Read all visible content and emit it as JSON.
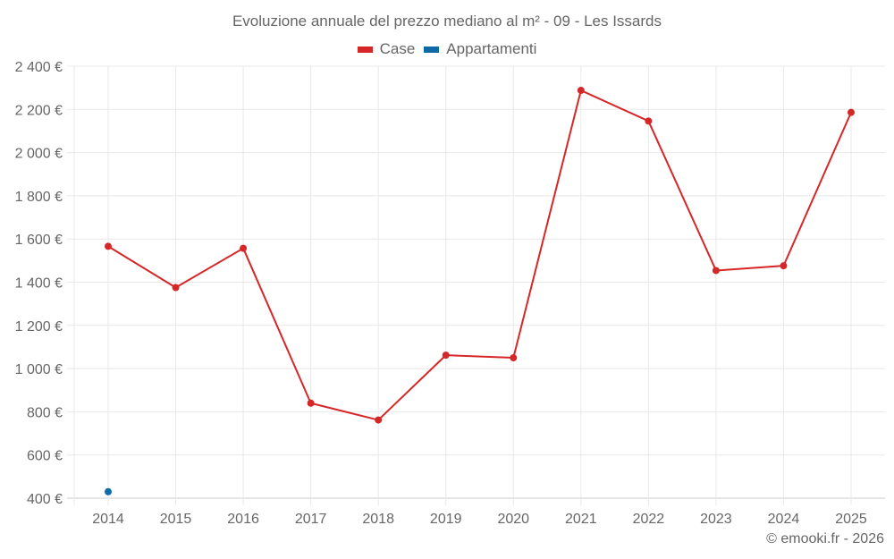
{
  "title": "Evoluzione annuale del prezzo mediano al m² - 09 - Les Issards",
  "legend": [
    {
      "label": "Case",
      "color": "#d62728"
    },
    {
      "label": "Appartamenti",
      "color": "#0d6aa6"
    }
  ],
  "credit": "© emooki.fr - 2026",
  "chart_data": {
    "type": "line",
    "title": "Evoluzione annuale del prezzo mediano al m² - 09 - Les Issards",
    "xlabel": "",
    "ylabel": "",
    "categories": [
      "2014",
      "2015",
      "2016",
      "2017",
      "2018",
      "2019",
      "2020",
      "2021",
      "2022",
      "2023",
      "2024",
      "2025"
    ],
    "series": [
      {
        "name": "Case",
        "color": "#d62728",
        "values": [
          1566,
          1375,
          1557,
          840,
          762,
          1062,
          1050,
          2288,
          2146,
          1454,
          1476,
          2186
        ]
      },
      {
        "name": "Appartamenti",
        "color": "#0d6aa6",
        "values": [
          430,
          null,
          null,
          null,
          null,
          null,
          null,
          null,
          null,
          null,
          null,
          null
        ]
      }
    ],
    "ylim": [
      400,
      2400
    ],
    "yticks": [
      400,
      600,
      800,
      1000,
      1200,
      1400,
      1600,
      1800,
      2000,
      2200,
      2400
    ],
    "ytick_labels": [
      "400 €",
      "600 €",
      "800 €",
      "1 000 €",
      "1 200 €",
      "1 400 €",
      "1 600 €",
      "1 800 €",
      "2 000 €",
      "2 200 €",
      "2 400 €"
    ],
    "grid": true,
    "legend_position": "top"
  }
}
